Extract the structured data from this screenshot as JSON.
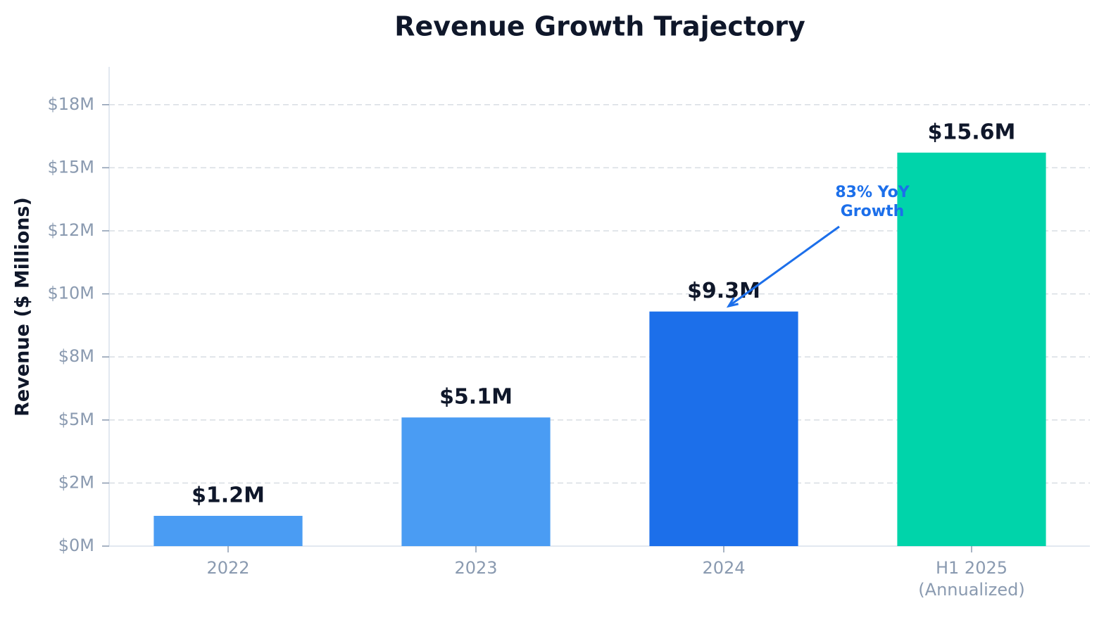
{
  "chart_data": {
    "type": "bar",
    "title": "Revenue Growth Trajectory",
    "y_label": "Revenue ($ Millions)",
    "categories": [
      "2022",
      "2023",
      "2024",
      "H1 2025\n(Annualized)"
    ],
    "values": [
      1.2,
      5.1,
      9.3,
      15.6
    ],
    "value_labels": [
      "$1.2M",
      "$5.1M",
      "$9.3M",
      "$15.6M"
    ],
    "colors": [
      "#4a9cf3",
      "#4a9cf3",
      "#1c6fea",
      "#00d4aa"
    ],
    "ylim": [
      0,
      19
    ],
    "yticks": [
      {
        "value": 0,
        "label": "$0M"
      },
      {
        "value": 2.5,
        "label": "$2M"
      },
      {
        "value": 5,
        "label": "$5M"
      },
      {
        "value": 7.5,
        "label": "$8M"
      },
      {
        "value": 10,
        "label": "$10M"
      },
      {
        "value": 12.5,
        "label": "$12M"
      },
      {
        "value": 15,
        "label": "$15M"
      },
      {
        "value": 17.5,
        "label": "$18M"
      }
    ],
    "grid": true,
    "annotations": [
      {
        "text": "83% YoY\nGrowth",
        "color": "#1c6fea"
      }
    ]
  }
}
